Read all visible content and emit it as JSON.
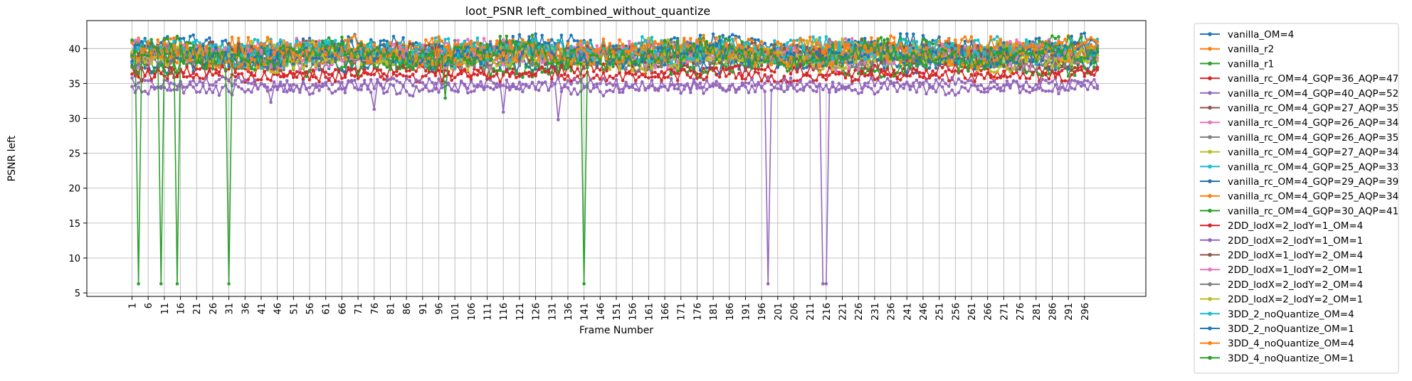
{
  "chart_data": {
    "type": "line",
    "title": "loot_PSNR left_combined_without_quantize",
    "xlabel": "Frame Number",
    "ylabel": "PSNR left",
    "xlim": [
      -13,
      315
    ],
    "ylim": [
      4.5,
      44
    ],
    "yticks": [
      5,
      10,
      15,
      20,
      25,
      30,
      35,
      40
    ],
    "xticks": [
      1,
      6,
      11,
      16,
      21,
      26,
      31,
      36,
      41,
      46,
      51,
      56,
      61,
      66,
      71,
      76,
      81,
      86,
      91,
      96,
      101,
      106,
      111,
      116,
      121,
      126,
      131,
      136,
      141,
      146,
      151,
      156,
      161,
      166,
      171,
      176,
      181,
      186,
      191,
      196,
      201,
      206,
      211,
      216,
      221,
      226,
      231,
      236,
      241,
      246,
      251,
      256,
      261,
      266,
      271,
      276,
      281,
      286,
      291,
      296
    ],
    "x_range": [
      1,
      300
    ],
    "grid": true,
    "legend_position": "outside-right",
    "series": [
      {
        "name": "vanilla_OM=4",
        "color": "#1f77b4",
        "base": 40.3,
        "amp": 1.5
      },
      {
        "name": "vanilla_r2",
        "color": "#ff7f0e",
        "base": 39.6,
        "amp": 1.8
      },
      {
        "name": "vanilla_r1",
        "color": "#2ca02c",
        "base": 39.4,
        "amp": 2.0
      },
      {
        "name": "vanilla_rc_OM=4_GQP=36_AQP=47",
        "color": "#d62728",
        "base": 36.4,
        "amp": 1.0
      },
      {
        "name": "vanilla_rc_OM=4_GQP=40_AQP=52",
        "color": "#9467bd",
        "base": 34.5,
        "amp": 1.0,
        "dips": [
          [
            198,
            6.3
          ],
          [
            215,
            6.3
          ],
          [
            216,
            6.3
          ],
          [
            76,
            31.3
          ],
          [
            116,
            30.9
          ],
          [
            133,
            29.8
          ],
          [
            44,
            32.3
          ]
        ]
      },
      {
        "name": "vanilla_rc_OM=4_GQP=27_AQP=35",
        "color": "#8c564b",
        "base": 39.2,
        "amp": 1.6
      },
      {
        "name": "vanilla_rc_OM=4_GQP=26_AQP=34",
        "color": "#e377c2",
        "base": 39.6,
        "amp": 1.5
      },
      {
        "name": "vanilla_rc_OM=4_GQP=26_AQP=35",
        "color": "#7f7f7f",
        "base": 39.3,
        "amp": 1.6
      },
      {
        "name": "vanilla_rc_OM=4_GQP=27_AQP=34",
        "color": "#bcbd22",
        "base": 39.4,
        "amp": 1.6
      },
      {
        "name": "vanilla_rc_OM=4_GQP=25_AQP=33",
        "color": "#17becf",
        "base": 39.8,
        "amp": 1.5
      },
      {
        "name": "vanilla_rc_OM=4_GQP=29_AQP=39",
        "color": "#1f77b4",
        "base": 38.4,
        "amp": 1.7
      },
      {
        "name": "vanilla_rc_OM=4_GQP=25_AQP=34",
        "color": "#ff7f0e",
        "base": 39.7,
        "amp": 1.6
      },
      {
        "name": "vanilla_rc_OM=4_GQP=30_AQP=41",
        "color": "#2ca02c",
        "base": 37.8,
        "amp": 1.6
      },
      {
        "name": "2DD_lodX=2_lodY=1_OM=4",
        "color": "#d62728",
        "base": 36.6,
        "amp": 1.1
      },
      {
        "name": "2DD_lodX=2_lodY=1_OM=1",
        "color": "#9467bd",
        "base": 34.7,
        "amp": 1.0
      },
      {
        "name": "2DD_lodX=1_lodY=2_OM=4",
        "color": "#8c564b",
        "base": 39.0,
        "amp": 1.5
      },
      {
        "name": "2DD_lodX=1_lodY=2_OM=1",
        "color": "#e377c2",
        "base": 38.8,
        "amp": 1.5
      },
      {
        "name": "2DD_lodX=2_lodY=2_OM=4",
        "color": "#7f7f7f",
        "base": 38.6,
        "amp": 1.5
      },
      {
        "name": "2DD_lodX=2_lodY=2_OM=1",
        "color": "#bcbd22",
        "base": 38.5,
        "amp": 1.5
      },
      {
        "name": "3DD_2_noQuantize_OM=4",
        "color": "#17becf",
        "base": 39.3,
        "amp": 1.7
      },
      {
        "name": "3DD_2_noQuantize_OM=1",
        "color": "#1f77b4",
        "base": 39.0,
        "amp": 1.7
      },
      {
        "name": "3DD_4_noQuantize_OM=4",
        "color": "#ff7f0e",
        "base": 39.2,
        "amp": 1.7
      },
      {
        "name": "3DD_4_noQuantize_OM=1",
        "color": "#2ca02c",
        "base": 39.0,
        "amp": 1.8,
        "dips": [
          [
            3,
            6.3
          ],
          [
            10,
            6.3
          ],
          [
            15,
            6.3
          ],
          [
            31,
            6.3
          ],
          [
            141,
            6.3
          ],
          [
            98,
            32.9
          ]
        ]
      }
    ]
  }
}
